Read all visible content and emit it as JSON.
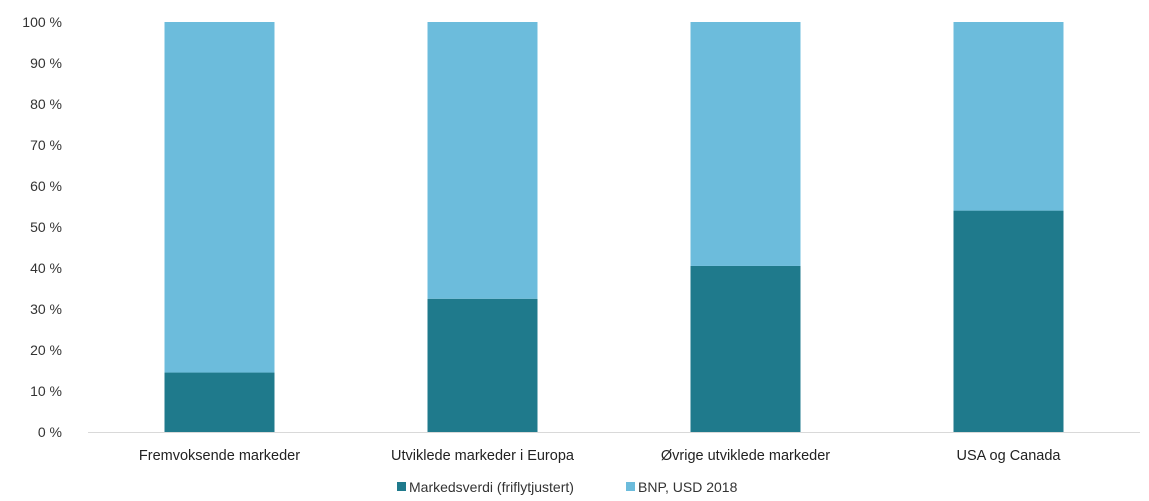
{
  "chart_data": {
    "type": "bar",
    "stacked": true,
    "categories": [
      "Fremvoksende markeder",
      "Utviklede markeder i Europa",
      "Øvrige utviklede markeder",
      "USA og Canada"
    ],
    "series": [
      {
        "name": "Markedsverdi (friflytjustert)",
        "color": "#1f7a8c",
        "values": [
          14.5,
          32.5,
          40.5,
          54
        ]
      },
      {
        "name": "BNP, USD 2018",
        "color": "#6cbcdc",
        "values": [
          85.5,
          67.5,
          59.5,
          46
        ]
      }
    ],
    "y_ticks": [
      "0 %",
      "10 %",
      "20 %",
      "30 %",
      "40 %",
      "50 %",
      "60 %",
      "70 %",
      "80 %",
      "90 %",
      "100 %"
    ],
    "ylim": [
      0,
      100
    ],
    "grid": false,
    "legend_position": "bottom"
  }
}
